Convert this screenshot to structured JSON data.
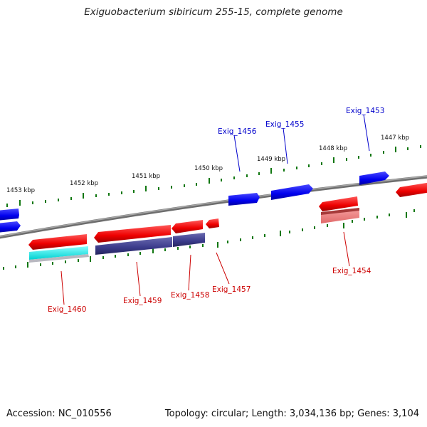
{
  "title": "Exiguobacterium sibiricum 255-15, complete genome",
  "footer": {
    "accession": "Accession: NC_010556",
    "summary": "Topology: circular; Length: 3,034,136 bp; Genes: 3,104"
  },
  "ruler": {
    "ticks": [
      "1453 kbp",
      "1452 kbp",
      "1451 kbp",
      "1450 kbp",
      "1449 kbp",
      "1448 kbp",
      "1447 kbp"
    ]
  },
  "genes": [
    {
      "name": "Exig_1453",
      "strand": "forward",
      "color": "#0000cc"
    },
    {
      "name": "Exig_1455",
      "strand": "forward",
      "color": "#0000cc"
    },
    {
      "name": "Exig_1456",
      "strand": "forward",
      "color": "#0000cc"
    },
    {
      "name": "Exig_1454",
      "strand": "reverse",
      "color": "#cc0000"
    },
    {
      "name": "Exig_1457",
      "strand": "reverse",
      "color": "#cc0000"
    },
    {
      "name": "Exig_1458",
      "strand": "reverse",
      "color": "#cc0000"
    },
    {
      "name": "Exig_1459",
      "strand": "reverse",
      "color": "#cc0000"
    },
    {
      "name": "Exig_1460",
      "strand": "reverse",
      "color": "#cc0000"
    }
  ],
  "colors": {
    "forward_gene": "#0000ee",
    "reverse_gene": "#ee0000",
    "cds_feature": "#3a3a8a",
    "rna_feature": "#00e5e5",
    "tick": "#117711",
    "backbone": "#808080"
  }
}
